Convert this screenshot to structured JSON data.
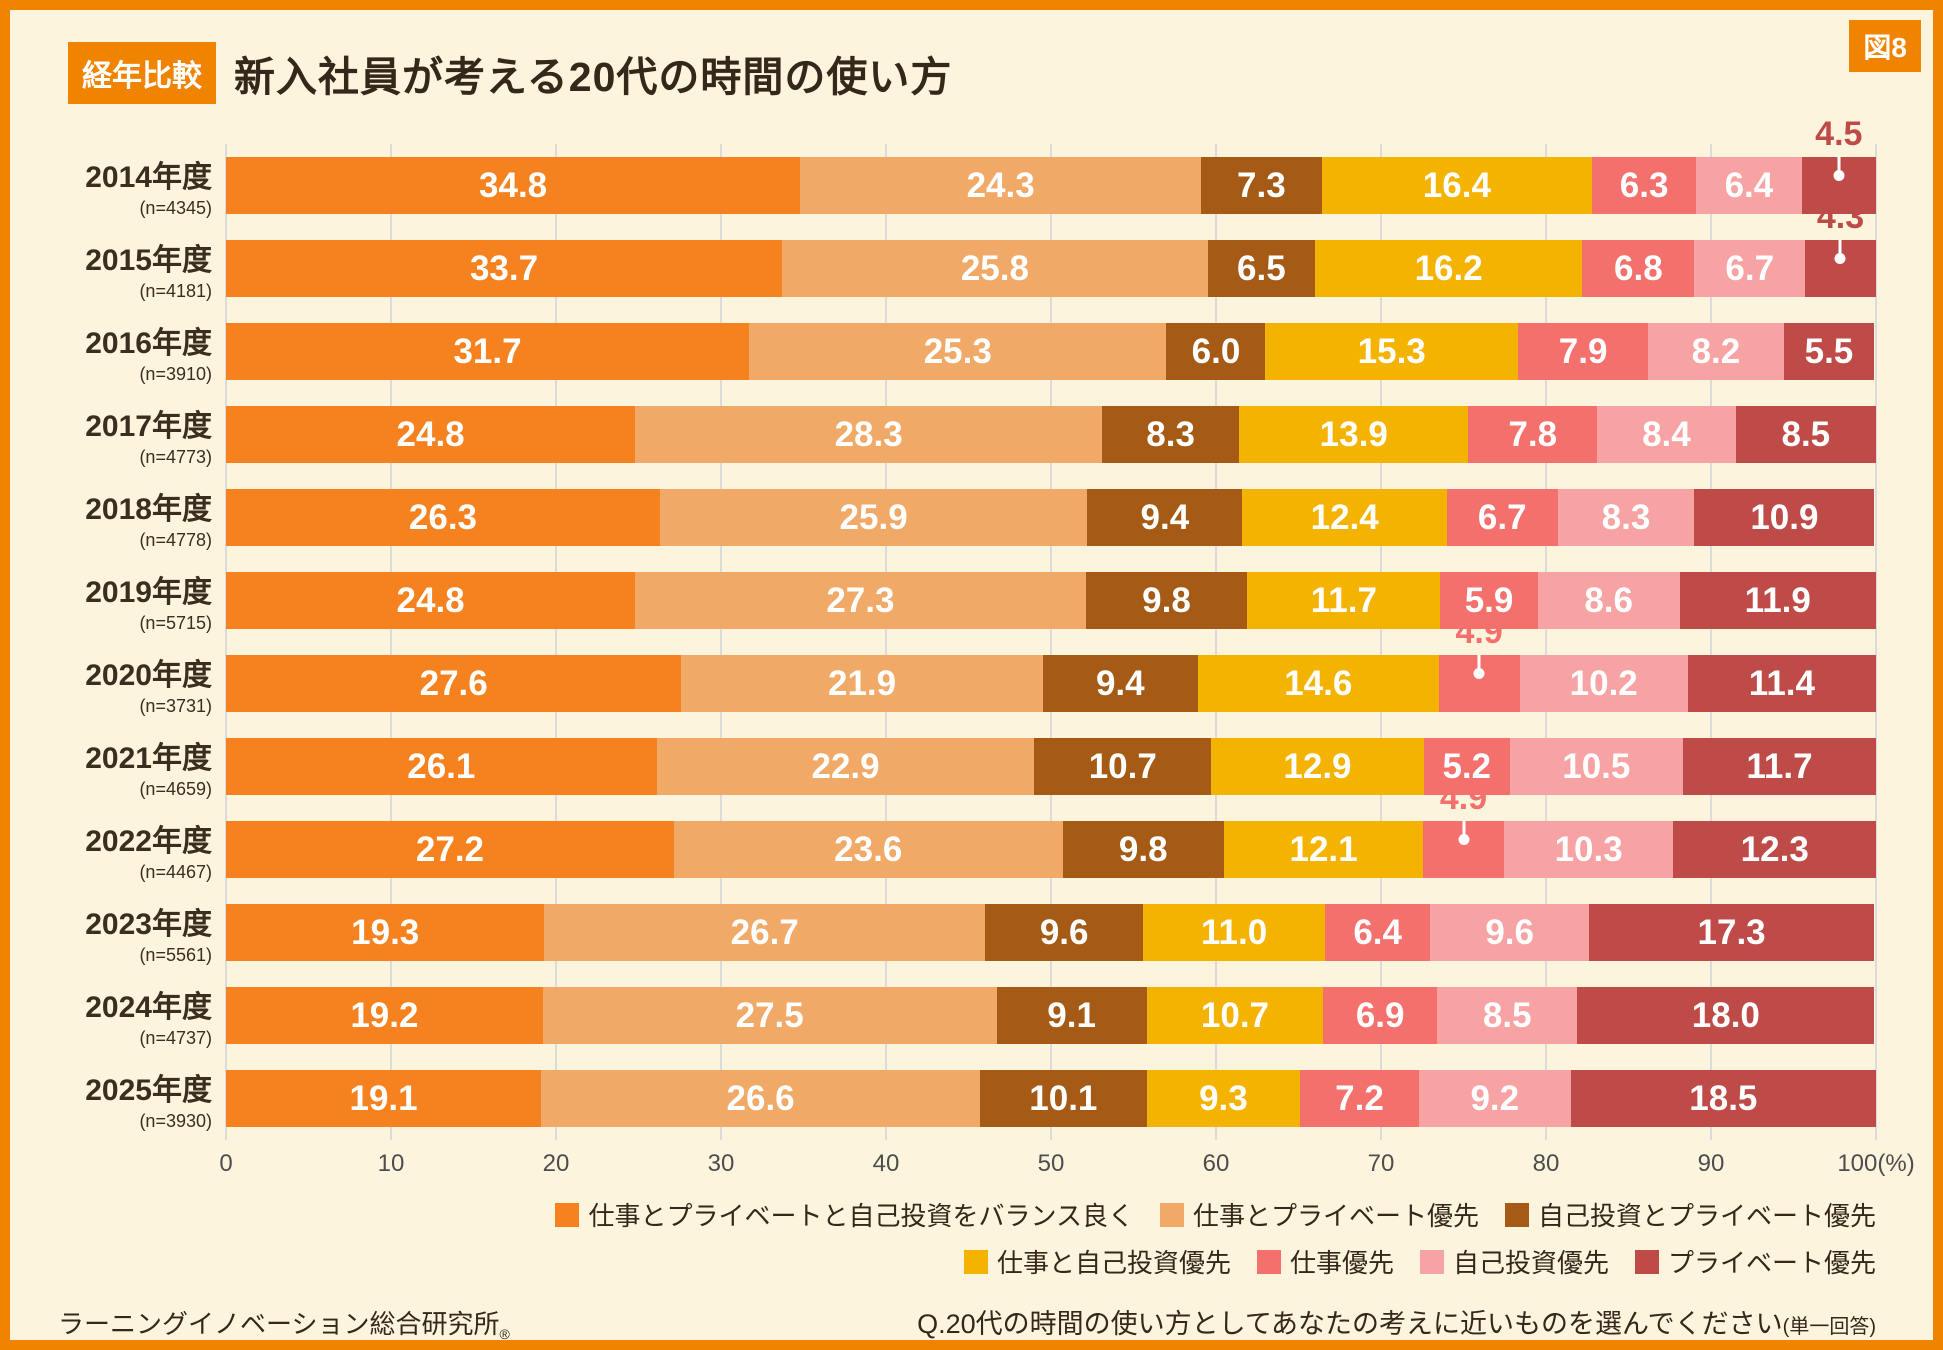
{
  "figure_tag": "図8",
  "header": {
    "badge": "経年比較",
    "title": "新入社員が考える20代の時間の使い方"
  },
  "colors": {
    "accent": "#F08300",
    "background": "#FCF4DD",
    "gridline": "#DBDBDB",
    "text_dark": "#33281A"
  },
  "chart_data": {
    "type": "bar",
    "stacked": true,
    "orientation": "horizontal",
    "title": "新入社員が考える20代の時間の使い方",
    "x_axis": {
      "min": 0,
      "max": 100,
      "tick_step": 10,
      "tick_labels": [
        "0",
        "10",
        "20",
        "30",
        "40",
        "50",
        "60",
        "70",
        "80",
        "90",
        "100(%)"
      ]
    },
    "series": [
      {
        "name": "仕事とプライベートと自己投資をバランス良く",
        "color": "#F5821F"
      },
      {
        "name": "仕事とプライベート優先",
        "color": "#F1A968"
      },
      {
        "name": "自己投資とプライベート優先",
        "color": "#A55B16"
      },
      {
        "name": "仕事と自己投資優先",
        "color": "#F5B301"
      },
      {
        "name": "仕事優先",
        "color": "#F4706D"
      },
      {
        "name": "自己投資優先",
        "color": "#F7A2A3"
      },
      {
        "name": "プライベート優先",
        "color": "#BF4B49"
      }
    ],
    "legend_rows": [
      [
        0,
        1,
        2
      ],
      [
        3,
        4,
        5,
        6
      ]
    ],
    "rows": [
      {
        "year": "2014年度",
        "n_label": "(n=4345)",
        "values": [
          34.8,
          24.3,
          7.3,
          16.4,
          6.3,
          6.4,
          4.5
        ]
      },
      {
        "year": "2015年度",
        "n_label": "(n=4181)",
        "values": [
          33.7,
          25.8,
          6.5,
          16.2,
          6.8,
          6.7,
          4.3
        ]
      },
      {
        "year": "2016年度",
        "n_label": "(n=3910)",
        "values": [
          31.7,
          25.3,
          6.0,
          15.3,
          7.9,
          8.2,
          5.5
        ]
      },
      {
        "year": "2017年度",
        "n_label": "(n=4773)",
        "values": [
          24.8,
          28.3,
          8.3,
          13.9,
          7.8,
          8.4,
          8.5
        ]
      },
      {
        "year": "2018年度",
        "n_label": "(n=4778)",
        "values": [
          26.3,
          25.9,
          9.4,
          12.4,
          6.7,
          8.3,
          10.9
        ]
      },
      {
        "year": "2019年度",
        "n_label": "(n=5715)",
        "values": [
          24.8,
          27.3,
          9.8,
          11.7,
          5.9,
          8.6,
          11.9
        ]
      },
      {
        "year": "2020年度",
        "n_label": "(n=3731)",
        "values": [
          27.6,
          21.9,
          9.4,
          14.6,
          4.9,
          10.2,
          11.4
        ]
      },
      {
        "year": "2021年度",
        "n_label": "(n=4659)",
        "values": [
          26.1,
          22.9,
          10.7,
          12.9,
          5.2,
          10.5,
          11.7
        ]
      },
      {
        "year": "2022年度",
        "n_label": "(n=4467)",
        "values": [
          27.2,
          23.6,
          9.8,
          12.1,
          4.9,
          10.3,
          12.3
        ]
      },
      {
        "year": "2023年度",
        "n_label": "(n=5561)",
        "values": [
          19.3,
          26.7,
          9.6,
          11.0,
          6.4,
          9.6,
          17.3
        ]
      },
      {
        "year": "2024年度",
        "n_label": "(n=4737)",
        "values": [
          19.2,
          27.5,
          9.1,
          10.7,
          6.9,
          8.5,
          18.0
        ]
      },
      {
        "year": "2025年度",
        "n_label": "(n=3930)",
        "values": [
          19.1,
          26.6,
          10.1,
          9.3,
          7.2,
          9.2,
          18.5
        ]
      }
    ],
    "callouts": [
      {
        "row": 0,
        "segment": 6
      },
      {
        "row": 1,
        "segment": 6
      },
      {
        "row": 6,
        "segment": 4
      },
      {
        "row": 8,
        "segment": 4
      }
    ]
  },
  "footer": {
    "source": "ラーニングイノベーション総合研究所",
    "source_mark": "®",
    "question": "Q.20代の時間の使い方としてあなたの考えに近いものを選んでください",
    "question_note": "(単一回答)"
  }
}
